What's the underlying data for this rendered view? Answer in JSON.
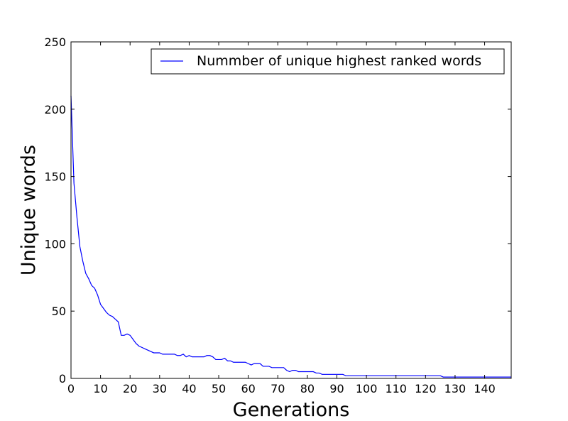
{
  "chart_data": {
    "type": "line",
    "title": "",
    "xlabel": "Generations",
    "ylabel": "Unique words",
    "xlim": [
      0,
      149
    ],
    "ylim": [
      0,
      250
    ],
    "xticks": [
      0,
      10,
      20,
      30,
      40,
      50,
      60,
      70,
      80,
      90,
      100,
      110,
      120,
      130,
      140
    ],
    "yticks": [
      0,
      50,
      100,
      150,
      200,
      250
    ],
    "grid": false,
    "legend": "top-right",
    "colors": {
      "series": "#0000ff"
    },
    "series": [
      {
        "name": "Nummber of unique highest ranked words",
        "x": [
          0,
          1,
          2,
          3,
          4,
          5,
          6,
          7,
          8,
          9,
          10,
          11,
          12,
          13,
          14,
          15,
          16,
          17,
          18,
          19,
          20,
          21,
          22,
          23,
          24,
          25,
          26,
          27,
          28,
          29,
          30,
          31,
          32,
          33,
          34,
          35,
          36,
          37,
          38,
          39,
          40,
          41,
          42,
          43,
          44,
          45,
          46,
          47,
          48,
          49,
          50,
          51,
          52,
          53,
          54,
          55,
          56,
          57,
          58,
          59,
          60,
          61,
          62,
          63,
          64,
          65,
          66,
          67,
          68,
          69,
          70,
          71,
          72,
          73,
          74,
          75,
          76,
          77,
          78,
          79,
          80,
          81,
          82,
          83,
          84,
          85,
          86,
          87,
          88,
          89,
          90,
          91,
          92,
          93,
          94,
          95,
          96,
          97,
          98,
          99,
          100,
          101,
          102,
          103,
          104,
          105,
          106,
          107,
          108,
          109,
          110,
          111,
          112,
          113,
          114,
          115,
          116,
          117,
          118,
          119,
          120,
          121,
          122,
          123,
          124,
          125,
          126,
          127,
          128,
          129,
          130,
          131,
          132,
          133,
          134,
          135,
          136,
          137,
          138,
          139,
          140,
          141,
          142,
          143,
          144,
          145,
          146,
          147,
          148,
          149
        ],
        "values": [
          210,
          145,
          120,
          98,
          87,
          78,
          74,
          69,
          67,
          62,
          55,
          52,
          49,
          47,
          46,
          44,
          42,
          32,
          32,
          33,
          32,
          29,
          26,
          24,
          23,
          22,
          21,
          20,
          19,
          19,
          19,
          18,
          18,
          18,
          18,
          18,
          17,
          17,
          18,
          16,
          17,
          16,
          16,
          16,
          16,
          16,
          17,
          17,
          16,
          14,
          14,
          14,
          15,
          13,
          13,
          12,
          12,
          12,
          12,
          12,
          11,
          10,
          11,
          11,
          11,
          9,
          9,
          9,
          8,
          8,
          8,
          8,
          8,
          6,
          5,
          6,
          6,
          5,
          5,
          5,
          5,
          5,
          5,
          4,
          4,
          3,
          3,
          3,
          3,
          3,
          3,
          3,
          3,
          2,
          2,
          2,
          2,
          2,
          2,
          2,
          2,
          2,
          2,
          2,
          2,
          2,
          2,
          2,
          2,
          2,
          2,
          2,
          2,
          2,
          2,
          2,
          2,
          2,
          2,
          2,
          2,
          2,
          2,
          2,
          2,
          2,
          1,
          1,
          1,
          1,
          1,
          1,
          1,
          1,
          1,
          1,
          1,
          1,
          1,
          1,
          1,
          1,
          1,
          1,
          1,
          1,
          1,
          1,
          1,
          1
        ]
      }
    ]
  }
}
